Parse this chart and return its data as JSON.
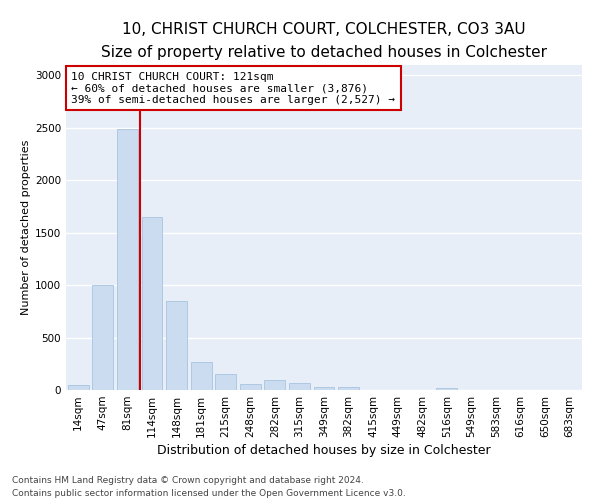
{
  "title1": "10, CHRIST CHURCH COURT, COLCHESTER, CO3 3AU",
  "title2": "Size of property relative to detached houses in Colchester",
  "xlabel": "Distribution of detached houses by size in Colchester",
  "ylabel": "Number of detached properties",
  "categories": [
    "14sqm",
    "47sqm",
    "81sqm",
    "114sqm",
    "148sqm",
    "181sqm",
    "215sqm",
    "248sqm",
    "282sqm",
    "315sqm",
    "349sqm",
    "382sqm",
    "415sqm",
    "449sqm",
    "482sqm",
    "516sqm",
    "549sqm",
    "583sqm",
    "616sqm",
    "650sqm",
    "683sqm"
  ],
  "values": [
    50,
    1000,
    2490,
    1650,
    845,
    270,
    150,
    60,
    100,
    70,
    30,
    25,
    0,
    0,
    0,
    18,
    0,
    0,
    0,
    0,
    0
  ],
  "bar_color": "#ccdcf0",
  "bar_edge_color": "#a8c4e0",
  "background_color": "#e8eef8",
  "grid_color": "#ffffff",
  "vline_x_index": 2.5,
  "vline_color": "#cc0000",
  "annotation_text": "10 CHRIST CHURCH COURT: 121sqm\n← 60% of detached houses are smaller (3,876)\n39% of semi-detached houses are larger (2,527) →",
  "annotation_box_color": "#ffffff",
  "annotation_box_edge_color": "#cc0000",
  "footnote1": "Contains HM Land Registry data © Crown copyright and database right 2024.",
  "footnote2": "Contains public sector information licensed under the Open Government Licence v3.0.",
  "ylim": [
    0,
    3100
  ],
  "yticks": [
    0,
    500,
    1000,
    1500,
    2000,
    2500,
    3000
  ],
  "title1_fontsize": 11,
  "title2_fontsize": 9.5,
  "xlabel_fontsize": 9,
  "ylabel_fontsize": 8,
  "tick_fontsize": 7.5,
  "annotation_fontsize": 8,
  "footnote_fontsize": 6.5
}
